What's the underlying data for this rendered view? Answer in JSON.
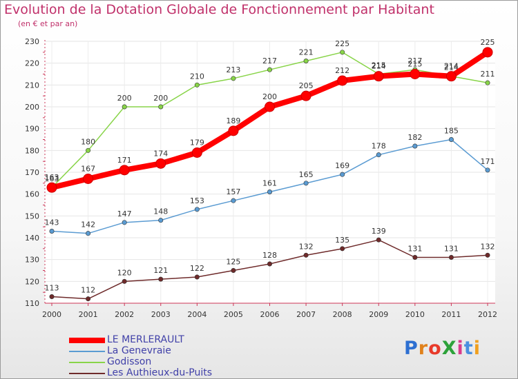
{
  "title": "Evolution de la Dotation Globale de Fonctionnement par Habitant",
  "subtitle": "(en € et par an)",
  "logo": {
    "text": "ProXiti",
    "letters": [
      "P",
      "r",
      "o",
      "X",
      "i",
      "t",
      "i"
    ],
    "colors": [
      "#2d6fd1",
      "#e0811b",
      "#e83a2a",
      "#2da23a",
      "#d93b8c",
      "#4a8fe0",
      "#f0a020"
    ]
  },
  "chart_data": {
    "type": "line",
    "x": [
      "2000",
      "2001",
      "2002",
      "2003",
      "2004",
      "2005",
      "2006",
      "2007",
      "2008",
      "2009",
      "2010",
      "2011",
      "2012"
    ],
    "ylim": [
      110,
      230
    ],
    "yticks": [
      110,
      120,
      130,
      140,
      150,
      160,
      170,
      180,
      190,
      200,
      210,
      220,
      230
    ],
    "grid": true,
    "series": [
      {
        "name": "Godisson",
        "color": "#88d448",
        "values": [
          163,
          180,
          200,
          200,
          210,
          213,
          217,
          221,
          225,
          215,
          217,
          214,
          211
        ]
      },
      {
        "name": "La Genevraie",
        "color": "#5a9bd2",
        "values": [
          143,
          142,
          147,
          148,
          153,
          157,
          161,
          165,
          169,
          178,
          182,
          185,
          171
        ]
      },
      {
        "name": "Les Authieux-du-Puits",
        "color": "#6e2a2a",
        "values": [
          113,
          112,
          120,
          121,
          122,
          125,
          128,
          132,
          135,
          139,
          131,
          131,
          132
        ]
      },
      {
        "name": "LE MERLERAULT",
        "color": "#ff0000",
        "values": [
          163,
          167,
          171,
          174,
          179,
          189,
          200,
          205,
          212,
          214,
          215,
          214,
          225
        ]
      }
    ],
    "legend_order": [
      "LE MERLERAULT",
      "La Genevraie",
      "Godisson",
      "Les Authieux-du-Puits"
    ]
  }
}
